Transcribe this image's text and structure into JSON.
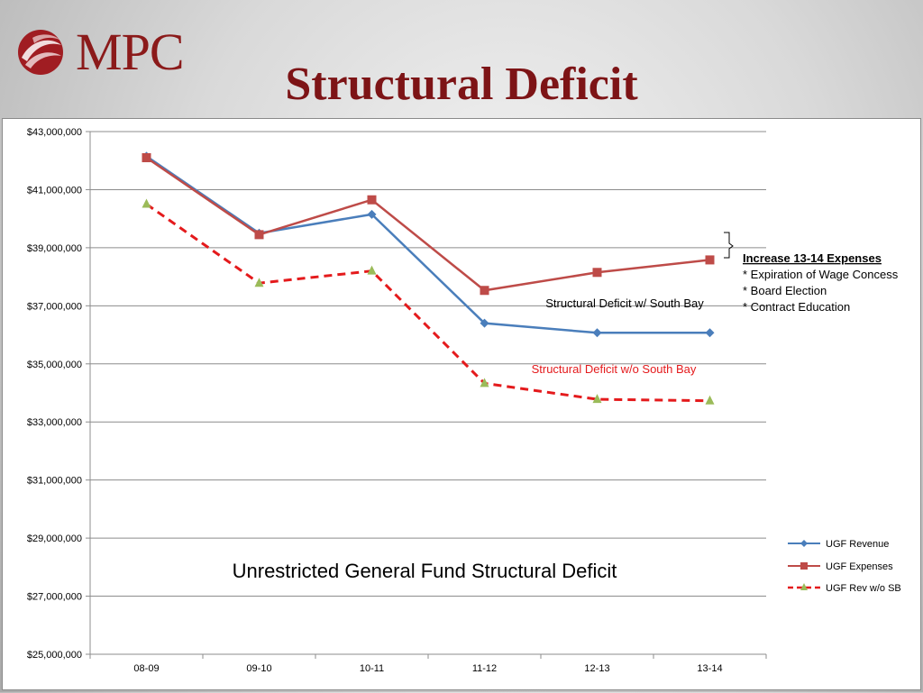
{
  "header": {
    "logo_text": "MPC",
    "title": "Structural Deficit"
  },
  "chart_data": {
    "type": "line",
    "title": "Unrestricted General Fund Structural Deficit",
    "categories": [
      "08-09",
      "09-10",
      "10-11",
      "11-12",
      "12-13",
      "13-14"
    ],
    "ylim": [
      25000000,
      43000000
    ],
    "yticks": [
      25000000,
      27000000,
      29000000,
      31000000,
      33000000,
      35000000,
      37000000,
      39000000,
      41000000,
      43000000
    ],
    "ytick_labels": [
      "$25,000,000",
      "$27,000,000",
      "$29,000,000",
      "$31,000,000",
      "$33,000,000",
      "$35,000,000",
      "$37,000,000",
      "$39,000,000",
      "$41,000,000",
      "$43,000,000"
    ],
    "grid": true,
    "legend_position": "right",
    "series": [
      {
        "name": "UGF Revenue",
        "color": "#4a7ebb",
        "marker": "diamond",
        "dash": "solid",
        "values": [
          42150000,
          39500000,
          40150000,
          36400000,
          36070000,
          36070000
        ]
      },
      {
        "name": "UGF Expenses",
        "color": "#be4b48",
        "marker": "square",
        "dash": "solid",
        "values": [
          42100000,
          39450000,
          40650000,
          37530000,
          38150000,
          38580000
        ]
      },
      {
        "name": "UGF Rev w/o SB",
        "color": "#e41a1c",
        "marker_color": "#9bbb59",
        "marker": "triangle",
        "dash": "dashed",
        "values": [
          40500000,
          37780000,
          38200000,
          34330000,
          33780000,
          33730000
        ]
      }
    ],
    "annotations": {
      "deficit_with_sb": "Structural Deficit w/ South Bay",
      "deficit_without_sb": "Structural Deficit w/o South Bay",
      "expense_heading": "Increase 13-14  Expenses",
      "expense_items": [
        "* Expiration of Wage Concess",
        "* Board Election",
        "* Contract Education"
      ]
    }
  }
}
